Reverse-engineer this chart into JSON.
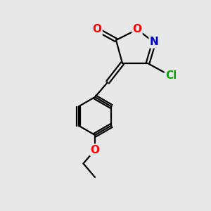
{
  "bg_color": "#e8e8e8",
  "atom_colors": {
    "O": "#ff0000",
    "N": "#0000cc",
    "Cl": "#00aa00",
    "C": "#000000"
  },
  "bond_color": "#000000",
  "bond_width": 1.6,
  "font_size_atom": 11
}
